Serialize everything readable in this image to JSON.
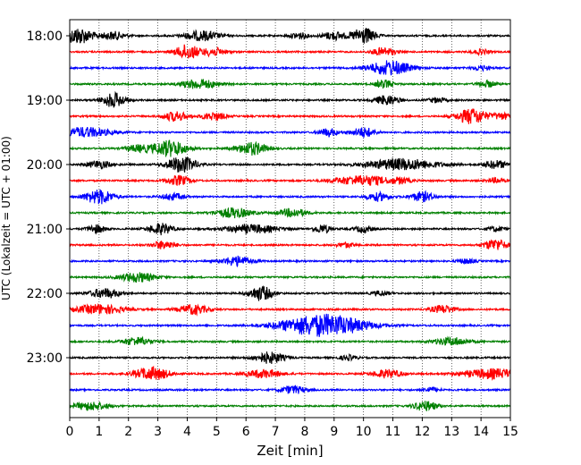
{
  "chart_data": {
    "type": "line",
    "title": "",
    "xlabel": "Zeit  [min]",
    "ylabel": "UTC (Lokalzeit = UTC + 01:00)",
    "xlim": [
      0,
      15
    ],
    "x_ticks": [
      "0",
      "1",
      "2",
      "3",
      "4",
      "5",
      "6",
      "7",
      "8",
      "9",
      "10",
      "11",
      "12",
      "13",
      "14",
      "15"
    ],
    "y_ticks": [
      "18:00",
      "19:00",
      "20:00",
      "21:00",
      "22:00",
      "23:00"
    ],
    "grid": "vertical dotted at each minute",
    "colors": {
      "black": "#000000",
      "red": "#ff0000",
      "blue": "#0000ff",
      "green": "#008000"
    },
    "series": [
      {
        "trace": "18:00",
        "color": "black",
        "bursts": [
          [
            0.3,
            1.0,
            0.5
          ],
          [
            1.5,
            0.5,
            0.4
          ],
          [
            4.5,
            0.6,
            0.6
          ],
          [
            7.8,
            0.4,
            0.3
          ],
          [
            9.0,
            0.5,
            0.4
          ],
          [
            10.0,
            1.0,
            0.4
          ]
        ]
      },
      {
        "trace": "18:15",
        "color": "red",
        "bursts": [
          [
            4.0,
            0.9,
            0.4
          ],
          [
            4.9,
            0.5,
            0.4
          ],
          [
            10.7,
            0.5,
            0.4
          ],
          [
            14.0,
            0.3,
            0.3
          ]
        ]
      },
      {
        "trace": "18:30",
        "color": "blue",
        "bursts": [
          [
            10.9,
            0.9,
            0.7
          ],
          [
            14.0,
            0.3,
            0.3
          ]
        ]
      },
      {
        "trace": "18:45",
        "color": "green",
        "bursts": [
          [
            4.4,
            0.6,
            0.6
          ],
          [
            10.7,
            0.5,
            0.3
          ],
          [
            14.2,
            0.4,
            0.3
          ]
        ]
      },
      {
        "trace": "19:00",
        "color": "black",
        "bursts": [
          [
            1.5,
            0.9,
            0.4
          ],
          [
            10.8,
            0.6,
            0.4
          ],
          [
            12.5,
            0.3,
            0.3
          ]
        ]
      },
      {
        "trace": "19:15",
        "color": "red",
        "bursts": [
          [
            3.6,
            0.6,
            0.4
          ],
          [
            4.9,
            0.5,
            0.4
          ],
          [
            13.7,
            1.0,
            0.5
          ],
          [
            14.7,
            0.4,
            0.3
          ]
        ]
      },
      {
        "trace": "19:30",
        "color": "blue",
        "bursts": [
          [
            0.5,
            0.6,
            0.9
          ],
          [
            8.8,
            0.5,
            0.3
          ],
          [
            10.0,
            0.6,
            0.4
          ]
        ]
      },
      {
        "trace": "19:45",
        "color": "green",
        "bursts": [
          [
            2.3,
            0.4,
            0.4
          ],
          [
            3.4,
            1.0,
            0.6
          ],
          [
            6.2,
            0.8,
            0.5
          ]
        ]
      },
      {
        "trace": "20:00",
        "color": "black",
        "bursts": [
          [
            1.0,
            0.5,
            0.4
          ],
          [
            3.8,
            1.0,
            0.5
          ],
          [
            11.3,
            0.7,
            1.2
          ],
          [
            14.5,
            0.5,
            0.4
          ]
        ]
      },
      {
        "trace": "20:15",
        "color": "red",
        "bursts": [
          [
            3.7,
            0.6,
            0.4
          ],
          [
            10.0,
            0.6,
            1.0
          ],
          [
            11.3,
            0.3,
            0.3
          ],
          [
            14.5,
            0.3,
            0.3
          ]
        ]
      },
      {
        "trace": "20:30",
        "color": "blue",
        "bursts": [
          [
            1.0,
            0.9,
            0.5
          ],
          [
            3.5,
            0.4,
            0.4
          ],
          [
            10.5,
            0.5,
            0.4
          ],
          [
            12.0,
            0.6,
            0.4
          ]
        ]
      },
      {
        "trace": "20:45",
        "color": "green",
        "bursts": [
          [
            5.6,
            0.6,
            0.6
          ],
          [
            7.6,
            0.5,
            0.5
          ]
        ]
      },
      {
        "trace": "21:00",
        "color": "black",
        "bursts": [
          [
            0.9,
            0.5,
            0.3
          ],
          [
            3.1,
            0.7,
            0.4
          ],
          [
            6.2,
            0.5,
            0.9
          ],
          [
            8.6,
            0.5,
            0.3
          ],
          [
            10.0,
            0.4,
            0.3
          ],
          [
            14.5,
            0.3,
            0.3
          ]
        ]
      },
      {
        "trace": "21:15",
        "color": "red",
        "bursts": [
          [
            3.2,
            0.5,
            0.4
          ],
          [
            9.4,
            0.3,
            0.3
          ],
          [
            14.5,
            0.7,
            0.4
          ]
        ]
      },
      {
        "trace": "21:30",
        "color": "blue",
        "bursts": [
          [
            5.7,
            0.6,
            0.5
          ],
          [
            13.5,
            0.3,
            0.3
          ]
        ]
      },
      {
        "trace": "21:45",
        "color": "green",
        "bursts": [
          [
            2.3,
            0.6,
            0.6
          ]
        ]
      },
      {
        "trace": "22:00",
        "color": "black",
        "bursts": [
          [
            1.2,
            0.6,
            0.5
          ],
          [
            6.5,
            0.9,
            0.4
          ],
          [
            10.6,
            0.3,
            0.3
          ]
        ]
      },
      {
        "trace": "22:15",
        "color": "red",
        "bursts": [
          [
            1.0,
            0.6,
            0.8
          ],
          [
            4.2,
            0.6,
            0.5
          ],
          [
            12.7,
            0.5,
            0.4
          ]
        ]
      },
      {
        "trace": "22:30",
        "color": "blue",
        "bursts": [
          [
            8.2,
            1.0,
            1.2
          ],
          [
            9.3,
            0.7,
            1.1
          ]
        ]
      },
      {
        "trace": "22:45",
        "color": "green",
        "bursts": [
          [
            2.3,
            0.5,
            0.5
          ],
          [
            13.0,
            0.5,
            0.6
          ]
        ]
      },
      {
        "trace": "23:00",
        "color": "black",
        "bursts": [
          [
            6.8,
            0.7,
            0.5
          ],
          [
            9.5,
            0.3,
            0.3
          ]
        ]
      },
      {
        "trace": "23:15",
        "color": "red",
        "bursts": [
          [
            2.8,
            0.8,
            0.6
          ],
          [
            6.6,
            0.5,
            0.6
          ],
          [
            10.8,
            0.5,
            0.5
          ],
          [
            14.4,
            0.6,
            1.0
          ]
        ]
      },
      {
        "trace": "23:30",
        "color": "blue",
        "bursts": [
          [
            7.6,
            0.5,
            0.4
          ],
          [
            12.3,
            0.3,
            0.3
          ]
        ]
      },
      {
        "trace": "23:45",
        "color": "green",
        "bursts": [
          [
            0.7,
            0.5,
            0.6
          ],
          [
            12.1,
            0.6,
            0.4
          ]
        ]
      }
    ]
  }
}
